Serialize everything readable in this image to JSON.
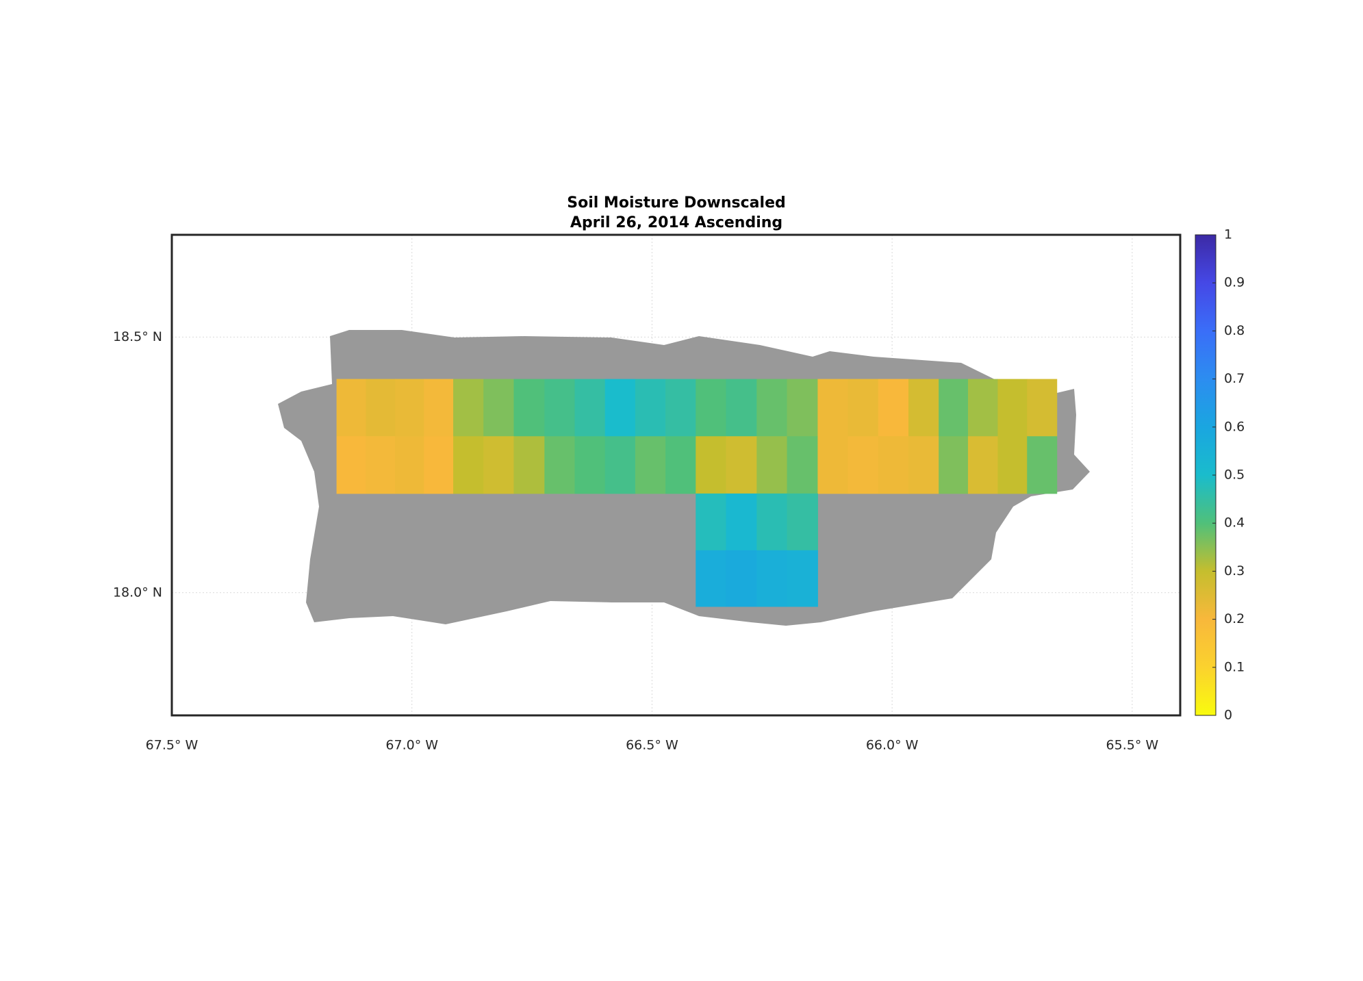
{
  "chart_data": {
    "type": "heatmap",
    "title": "Soil Moisture Downscaled",
    "subtitle": "April 26, 2014 Ascending",
    "xlim": [
      -67.5,
      -65.4
    ],
    "ylim": [
      17.76,
      18.7
    ],
    "xticks": [
      {
        "value": -67.5,
        "label": "67.5° W"
      },
      {
        "value": -67.0,
        "label": "67.0° W"
      },
      {
        "value": -66.5,
        "label": "66.5° W"
      },
      {
        "value": -66.0,
        "label": "66.0° W"
      },
      {
        "value": -65.5,
        "label": "65.5° W"
      }
    ],
    "yticks": [
      {
        "value": 18.0,
        "label": "18.0° N"
      },
      {
        "value": 18.5,
        "label": "18.5° N"
      }
    ],
    "grid": true,
    "mask_color": "#999999",
    "x_bins": [
      -67.157,
      -67.096,
      -67.035,
      -66.975,
      -66.914,
      -66.851,
      -66.788,
      -66.724,
      -66.661,
      -66.598,
      -66.535,
      -66.472,
      -66.409,
      -66.346,
      -66.282,
      -66.219,
      -66.155,
      -66.092,
      -66.029,
      -65.966,
      -65.903,
      -65.842,
      -65.78,
      -65.719,
      -65.657
    ],
    "y_bins": [
      18.418,
      18.306,
      18.194,
      18.083,
      17.973
    ],
    "values": [
      [
        0.22,
        0.24,
        0.23,
        0.21,
        0.33,
        0.36,
        0.4,
        0.42,
        0.45,
        0.5,
        0.47,
        0.45,
        0.4,
        0.42,
        0.38,
        0.36,
        0.22,
        0.23,
        0.2,
        0.27,
        0.38,
        0.33,
        0.3,
        0.27
      ],
      [
        0.2,
        0.21,
        0.22,
        0.2,
        0.3,
        0.28,
        0.32,
        0.38,
        0.4,
        0.42,
        0.38,
        0.4,
        0.3,
        0.28,
        0.34,
        0.38,
        0.22,
        0.21,
        0.22,
        0.23,
        0.36,
        0.26,
        0.3,
        0.38
      ],
      [
        null,
        null,
        null,
        null,
        null,
        null,
        null,
        null,
        null,
        null,
        null,
        null,
        0.48,
        0.52,
        0.47,
        0.45,
        null,
        null,
        null,
        null,
        null,
        null,
        null,
        null
      ],
      [
        null,
        null,
        null,
        null,
        null,
        null,
        null,
        null,
        null,
        null,
        null,
        null,
        0.57,
        0.58,
        0.56,
        0.55,
        null,
        null,
        null,
        null,
        null,
        null,
        null,
        null
      ]
    ],
    "clim": [
      0,
      1
    ],
    "cticks": [
      0,
      0.1,
      0.2,
      0.3,
      0.4,
      0.5,
      0.6,
      0.7,
      0.8,
      0.9,
      1
    ],
    "colormap": [
      "#f9fb0e",
      "#fbd22e",
      "#f8b83b",
      "#c5be2e",
      "#50c07a",
      "#1abccc",
      "#1aa6e0",
      "#2c8df0",
      "#3a6ef8",
      "#4548e6",
      "#3c2aa5"
    ]
  }
}
